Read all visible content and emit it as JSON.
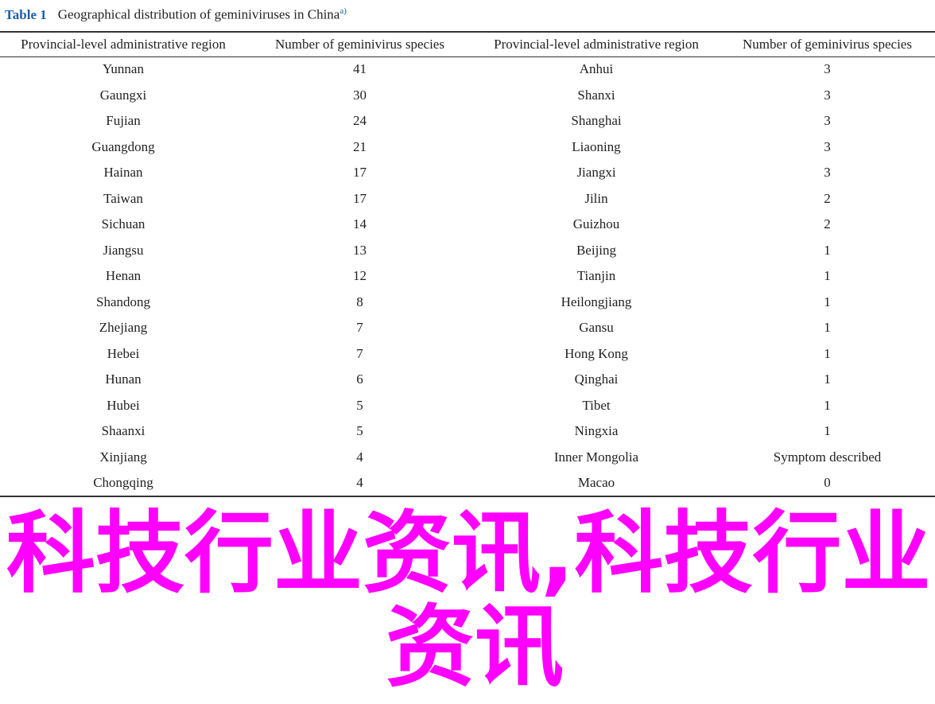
{
  "caption": {
    "label": "Table 1",
    "title": "Geographical distribution of geminiviruses in China",
    "footnote": "a)"
  },
  "headers": [
    "Provincial-level administrative region",
    "Number of geminivirus species",
    "Provincial-level administrative region",
    "Number of geminivirus species"
  ],
  "rows": [
    [
      "Yunnan",
      "41",
      "Anhui",
      "3"
    ],
    [
      "Gaungxi",
      "30",
      "Shanxi",
      "3"
    ],
    [
      "Fujian",
      "24",
      "Shanghai",
      "3"
    ],
    [
      "Guangdong",
      "21",
      "Liaoning",
      "3"
    ],
    [
      "Hainan",
      "17",
      "Jiangxi",
      "3"
    ],
    [
      "Taiwan",
      "17",
      "Jilin",
      "2"
    ],
    [
      "Sichuan",
      "14",
      "Guizhou",
      "2"
    ],
    [
      "Jiangsu",
      "13",
      "Beijing",
      "1"
    ],
    [
      "Henan",
      "12",
      "Tianjin",
      "1"
    ],
    [
      "Shandong",
      "8",
      "Heilongjiang",
      "1"
    ],
    [
      "Zhejiang",
      "7",
      "Gansu",
      "1"
    ],
    [
      "Hebei",
      "7",
      "Hong Kong",
      "1"
    ],
    [
      "Hunan",
      "6",
      "Qinghai",
      "1"
    ],
    [
      "Hubei",
      "5",
      "Tibet",
      "1"
    ],
    [
      "Shaanxi",
      "5",
      "Ningxia",
      "1"
    ],
    [
      "Xinjiang",
      "4",
      "Inner Mongolia",
      "Symptom described"
    ],
    [
      "Chongqing",
      "4",
      "Macao",
      "0"
    ]
  ],
  "watermark": {
    "line1": "科技行业资讯,科技行业",
    "line2": "资讯",
    "color": "#ff00ff"
  }
}
